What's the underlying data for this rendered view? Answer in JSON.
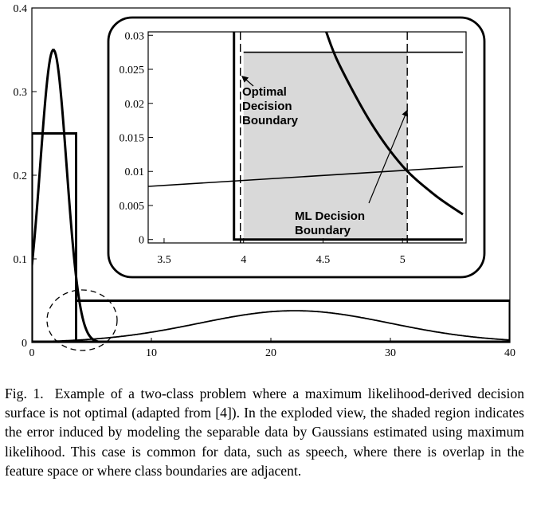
{
  "chart_data": [
    {
      "type": "line",
      "title": "",
      "xlabel": "",
      "ylabel": "",
      "xlim": [
        0,
        40
      ],
      "ylim": [
        0,
        0.4
      ],
      "x_ticks": [
        "0",
        "10",
        "20",
        "30",
        "40"
      ],
      "y_ticks": [
        "0",
        "0.1",
        "0.2",
        "0.3",
        "0.4"
      ],
      "grid": false,
      "series": [
        {
          "kind": "gaussian",
          "mean": 1.8,
          "std": 1.1,
          "peak": 0.35
        },
        {
          "kind": "gaussian",
          "mean": 22,
          "std": 8,
          "peak": 0.038
        },
        {
          "kind": "uniform",
          "x": [
            0,
            3.7
          ],
          "height": 0.25
        },
        {
          "kind": "uniform",
          "x": [
            3.7,
            40
          ],
          "height": 0.05
        }
      ]
    },
    {
      "type": "line",
      "title": "",
      "xlabel": "",
      "ylabel": "",
      "xlim": [
        3.4,
        5.4
      ],
      "ylim": [
        -0.0005,
        0.0305
      ],
      "x_ticks": [
        "3.5",
        "4",
        "4.5",
        "5"
      ],
      "y_ticks": [
        "0",
        "0.005",
        "0.01",
        "0.015",
        "0.02",
        "0.025",
        "0.03"
      ],
      "grid": false,
      "series": [
        {
          "kind": "gaussian-tail",
          "x": [
            4.52,
            4.6,
            4.8,
            5.0,
            5.2,
            5.38
          ],
          "y": [
            0.0305,
            0.0258,
            0.0172,
            0.0108,
            0.0066,
            0.0037
          ]
        },
        {
          "kind": "gaussian-low",
          "x": [
            3.4,
            5.38
          ],
          "y": [
            0.0078,
            0.0107
          ]
        },
        {
          "kind": "uniform-step",
          "x": [
            3.94,
            3.94,
            5.38
          ],
          "y": [
            0.031,
            0.0,
            0.0
          ]
        },
        {
          "kind": "uniform-top",
          "x": [
            4.0,
            5.38
          ],
          "y": [
            0.0275,
            0.0275
          ]
        }
      ],
      "shaded_region": {
        "x": [
          4.0,
          5.03
        ],
        "y": [
          0,
          0.0275
        ]
      },
      "dashed_lines_x": [
        3.98,
        5.03
      ],
      "annotations": [
        {
          "lines": [
            "Optimal",
            "Decision",
            "Boundary"
          ],
          "points_to": {
            "x": 3.99,
            "y": 0.024
          }
        },
        {
          "lines": [
            "ML Decision",
            "Boundary"
          ],
          "points_to": {
            "x": 5.03,
            "y": 0.019
          }
        }
      ]
    }
  ],
  "caption": {
    "label": "Fig. 1.",
    "text": "Example of a two-class problem where a maximum likelihood-derived decision surface is not optimal (adapted from [4]). In the exploded view, the shaded region indicates the error induced by modeling the separable data by Gaussians estimated using maximum likelihood. This case is common for data, such as speech, where there is overlap in the feature space or where class boundaries are adjacent."
  }
}
